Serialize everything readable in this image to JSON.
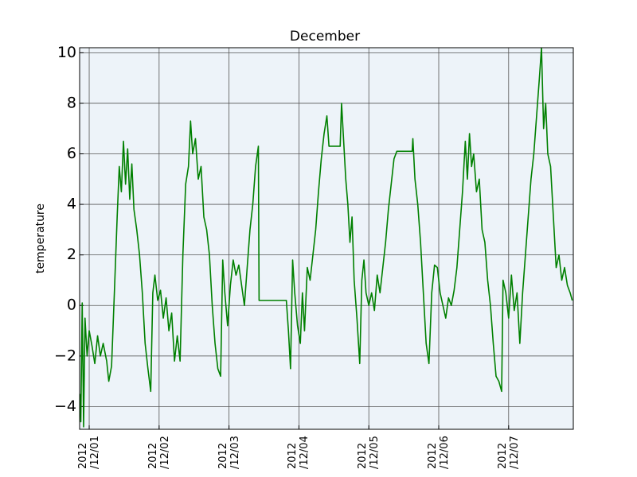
{
  "chart_data": {
    "type": "line",
    "title": "December",
    "y_label": "temperature",
    "x": [
      0.87,
      0.88,
      0.9,
      0.92,
      0.94,
      0.97,
      1.0,
      1.04,
      1.08,
      1.12,
      1.16,
      1.2,
      1.25,
      1.28,
      1.32,
      1.36,
      1.4,
      1.43,
      1.46,
      1.49,
      1.52,
      1.55,
      1.58,
      1.61,
      1.64,
      1.68,
      1.72,
      1.76,
      1.8,
      1.84,
      1.88,
      1.91,
      1.94,
      1.98,
      2.02,
      2.06,
      2.1,
      2.14,
      2.18,
      2.22,
      2.26,
      2.3,
      2.34,
      2.38,
      2.42,
      2.45,
      2.48,
      2.52,
      2.56,
      2.6,
      2.64,
      2.68,
      2.72,
      2.76,
      2.8,
      2.84,
      2.88,
      2.91,
      2.94,
      2.98,
      3.02,
      3.06,
      3.1,
      3.14,
      3.18,
      3.22,
      3.26,
      3.3,
      3.34,
      3.38,
      3.42,
      3.43,
      3.6,
      3.82,
      3.85,
      3.88,
      3.91,
      3.94,
      3.98,
      4.02,
      4.05,
      4.08,
      4.12,
      4.16,
      4.2,
      4.24,
      4.28,
      4.32,
      4.36,
      4.4,
      4.43,
      4.59,
      4.61,
      4.64,
      4.67,
      4.7,
      4.73,
      4.76,
      4.79,
      4.83,
      4.87,
      4.9,
      4.93,
      4.96,
      5.0,
      5.04,
      5.08,
      5.12,
      5.16,
      5.2,
      5.24,
      5.28,
      5.32,
      5.36,
      5.4,
      5.62,
      5.63,
      5.66,
      5.7,
      5.74,
      5.78,
      5.82,
      5.86,
      5.9,
      5.94,
      5.98,
      6.02,
      6.06,
      6.1,
      6.14,
      6.18,
      6.22,
      6.26,
      6.3,
      6.34,
      6.38,
      6.41,
      6.44,
      6.47,
      6.5,
      6.54,
      6.58,
      6.62,
      6.66,
      6.7,
      6.74,
      6.78,
      6.82,
      6.86,
      6.9,
      6.92,
      6.96,
      7.0,
      7.04,
      7.08,
      7.12,
      7.16,
      7.2,
      7.24,
      7.28,
      7.32,
      7.36,
      7.4,
      7.44,
      7.47,
      7.5,
      7.53,
      7.56,
      7.6,
      7.64,
      7.68,
      7.72,
      7.76,
      7.8,
      7.84,
      7.88,
      7.91
    ],
    "series": [
      {
        "color": "#008000",
        "values": [
          -3.5,
          -4.6,
          0.1,
          -4.8,
          -0.5,
          -2,
          -1,
          -1.6,
          -2.3,
          -1.2,
          -2.0,
          -1.5,
          -2.2,
          -3.0,
          -2.4,
          0.5,
          3.5,
          5.5,
          4.5,
          6.5,
          4.8,
          6.2,
          4.2,
          5.6,
          3.8,
          3.0,
          2.0,
          0.5,
          -1.5,
          -2.5,
          -3.4,
          0.5,
          1.2,
          0.2,
          0.6,
          -0.5,
          0.3,
          -1.0,
          -0.3,
          -2.2,
          -1.2,
          -2.2,
          2.0,
          4.8,
          5.5,
          7.3,
          6.0,
          6.6,
          5.0,
          5.5,
          3.5,
          3.0,
          2.0,
          0.0,
          -1.5,
          -2.5,
          -2.8,
          1.8,
          0.5,
          -0.8,
          0.8,
          1.8,
          1.2,
          1.6,
          0.8,
          0.0,
          1.5,
          3.0,
          4.0,
          5.5,
          6.3,
          0.2,
          0.2,
          0.2,
          -1.0,
          -2.5,
          1.8,
          0.5,
          -0.8,
          -1.5,
          0.5,
          -1.0,
          1.5,
          1.0,
          2.0,
          3.0,
          4.5,
          5.8,
          6.8,
          7.5,
          6.3,
          6.3,
          8.0,
          6.5,
          5.0,
          4.0,
          2.5,
          3.5,
          1.0,
          -0.5,
          -2.3,
          1.0,
          1.8,
          0.5,
          0.0,
          0.5,
          -0.2,
          1.2,
          0.5,
          1.5,
          2.5,
          3.8,
          4.8,
          5.8,
          6.1,
          6.1,
          6.6,
          5.0,
          4.0,
          2.5,
          0.5,
          -1.5,
          -2.3,
          0.5,
          1.6,
          1.5,
          0.5,
          0.0,
          -0.5,
          0.3,
          0.0,
          0.6,
          1.5,
          3.0,
          4.5,
          6.5,
          5.0,
          6.8,
          5.5,
          6.0,
          4.5,
          5.0,
          3.0,
          2.5,
          1.0,
          0.0,
          -1.5,
          -2.8,
          -3.0,
          -3.4,
          1.0,
          0.5,
          -0.5,
          1.2,
          -0.2,
          0.5,
          -1.5,
          0.5,
          2.0,
          3.5,
          5.0,
          6.0,
          7.5,
          9.0,
          10.2,
          7.0,
          8.0,
          6.0,
          5.5,
          3.5,
          1.5,
          2.0,
          1.0,
          1.5,
          0.8,
          0.5,
          0.2
        ]
      }
    ],
    "xlim": [
      0.863,
      7.925
    ],
    "xticks": [
      {
        "value": 1,
        "label": "2012\n/12/01"
      },
      {
        "value": 2,
        "label": "2012\n/12/02"
      },
      {
        "value": 3,
        "label": "2012\n/12/03"
      },
      {
        "value": 4,
        "label": "2012\n/12/04"
      },
      {
        "value": 5,
        "label": "2012\n/12/05"
      },
      {
        "value": 6,
        "label": "2012\n/12/06"
      },
      {
        "value": 7,
        "label": "2012\n/12/07"
      }
    ],
    "ylim": [
      -4.9,
      10.2
    ],
    "yticks": [
      {
        "value": -4,
        "label": "−4"
      },
      {
        "value": -2,
        "label": "−2"
      },
      0,
      2,
      4,
      6,
      8,
      10
    ],
    "grid": true,
    "background": "#edf3f9"
  }
}
